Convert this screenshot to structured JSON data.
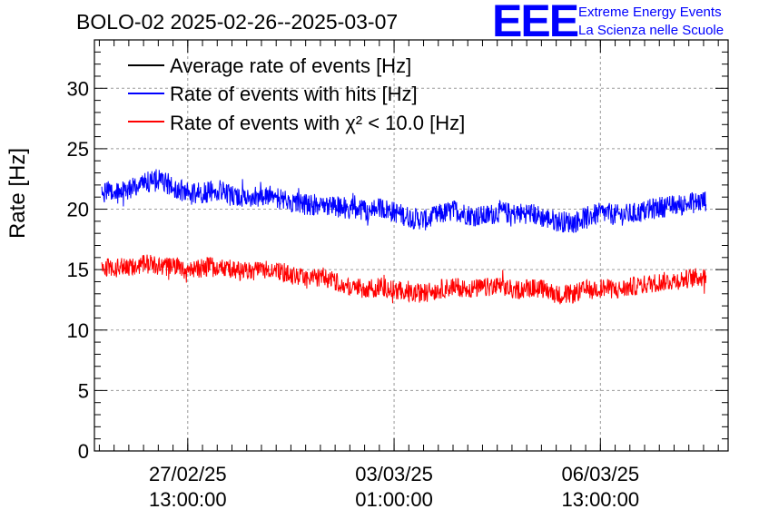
{
  "chart_data": {
    "type": "line",
    "title": "BOLO-02 2025-02-26--2025-03-07",
    "ylabel": "Rate [Hz]",
    "xlabel": "",
    "ylim": [
      0,
      34
    ],
    "yticks": [
      "0",
      "5",
      "10",
      "15",
      "20",
      "25",
      "30"
    ],
    "x_range": [
      "2025-02-25 23:00:00",
      "2025-03-08 17:00:00"
    ],
    "xticks": [
      {
        "date": "2025-02-27 13:00:00",
        "line1": "27/02/25",
        "line2": "13:00:00"
      },
      {
        "date": "2025-03-03 01:00:00",
        "line1": "03/03/25",
        "line2": "01:00:00"
      },
      {
        "date": "2025-03-06 13:00:00",
        "line1": "06/03/25",
        "line2": "13:00:00"
      }
    ],
    "grid": true,
    "legend_position": "top-left",
    "series": [
      {
        "name": "Average rate of events [Hz]",
        "color": "#000000",
        "x": [],
        "y": []
      },
      {
        "name": "Rate of events with hits [Hz]",
        "color": "#0000ff",
        "noise_amplitude": 0.9,
        "x": [
          "2025-02-26 02:00",
          "2025-02-26 08:00",
          "2025-02-26 14:00",
          "2025-02-26 20:00",
          "2025-02-27 02:00",
          "2025-02-27 08:00",
          "2025-02-27 14:00",
          "2025-02-27 20:00",
          "2025-02-28 02:00",
          "2025-02-28 08:00",
          "2025-02-28 14:00",
          "2025-02-28 20:00",
          "2025-03-01 02:00",
          "2025-03-01 08:00",
          "2025-03-01 14:00",
          "2025-03-01 20:00",
          "2025-03-02 02:00",
          "2025-03-02 08:00",
          "2025-03-02 14:00",
          "2025-03-02 20:00",
          "2025-03-03 02:00",
          "2025-03-03 08:00",
          "2025-03-03 14:00",
          "2025-03-03 20:00",
          "2025-03-04 02:00",
          "2025-03-04 08:00",
          "2025-03-04 14:00",
          "2025-03-04 20:00",
          "2025-03-05 02:00",
          "2025-03-05 08:00",
          "2025-03-05 14:00",
          "2025-03-05 20:00",
          "2025-03-06 02:00",
          "2025-03-06 08:00",
          "2025-03-06 14:00",
          "2025-03-06 20:00",
          "2025-03-07 02:00",
          "2025-03-07 08:00",
          "2025-03-07 14:00",
          "2025-03-07 20:00",
          "2025-03-08 02:00",
          "2025-03-08 08:00"
        ],
        "y": [
          21.5,
          21.3,
          21.8,
          22.2,
          22.4,
          21.8,
          21.2,
          21.4,
          21.6,
          21.0,
          20.8,
          21.2,
          20.9,
          20.6,
          20.3,
          20.5,
          20.2,
          20.0,
          19.9,
          20.1,
          19.7,
          19.3,
          19.1,
          19.6,
          19.9,
          19.5,
          19.4,
          19.8,
          19.6,
          19.7,
          19.3,
          19.0,
          18.9,
          19.4,
          19.7,
          19.5,
          19.6,
          19.9,
          20.2,
          20.3,
          20.5,
          20.7
        ]
      },
      {
        "name": "Rate of events with χ² < 10.0 [Hz]",
        "color": "#ff0000",
        "noise_amplitude": 0.8,
        "x": [
          "2025-02-26 02:00",
          "2025-02-26 08:00",
          "2025-02-26 14:00",
          "2025-02-26 20:00",
          "2025-02-27 02:00",
          "2025-02-27 08:00",
          "2025-02-27 14:00",
          "2025-02-27 20:00",
          "2025-02-28 02:00",
          "2025-02-28 08:00",
          "2025-02-28 14:00",
          "2025-02-28 20:00",
          "2025-03-01 02:00",
          "2025-03-01 08:00",
          "2025-03-01 14:00",
          "2025-03-01 20:00",
          "2025-03-02 02:00",
          "2025-03-02 08:00",
          "2025-03-02 14:00",
          "2025-03-02 20:00",
          "2025-03-03 02:00",
          "2025-03-03 08:00",
          "2025-03-03 14:00",
          "2025-03-03 20:00",
          "2025-03-04 02:00",
          "2025-03-04 08:00",
          "2025-03-04 14:00",
          "2025-03-04 20:00",
          "2025-03-05 02:00",
          "2025-03-05 08:00",
          "2025-03-05 14:00",
          "2025-03-05 20:00",
          "2025-03-06 02:00",
          "2025-03-06 08:00",
          "2025-03-06 14:00",
          "2025-03-06 20:00",
          "2025-03-07 02:00",
          "2025-03-07 08:00",
          "2025-03-07 14:00",
          "2025-03-07 20:00",
          "2025-03-08 02:00",
          "2025-03-08 08:00"
        ],
        "y": [
          15.2,
          15.1,
          15.3,
          15.5,
          15.3,
          15.1,
          15.0,
          15.2,
          15.3,
          14.9,
          14.8,
          15.0,
          14.9,
          14.5,
          14.2,
          14.4,
          14.0,
          13.5,
          13.4,
          13.6,
          13.3,
          13.0,
          13.1,
          13.4,
          13.6,
          13.4,
          13.5,
          13.6,
          13.3,
          13.5,
          13.4,
          12.9,
          13.0,
          13.4,
          13.5,
          13.3,
          13.6,
          13.8,
          14.0,
          14.1,
          14.3,
          14.4
        ]
      }
    ]
  },
  "logo": {
    "mark": "EEE",
    "line1": "Extreme Energy Events",
    "line2": "La Scienza nelle Scuole",
    "color": "#0000ff"
  }
}
